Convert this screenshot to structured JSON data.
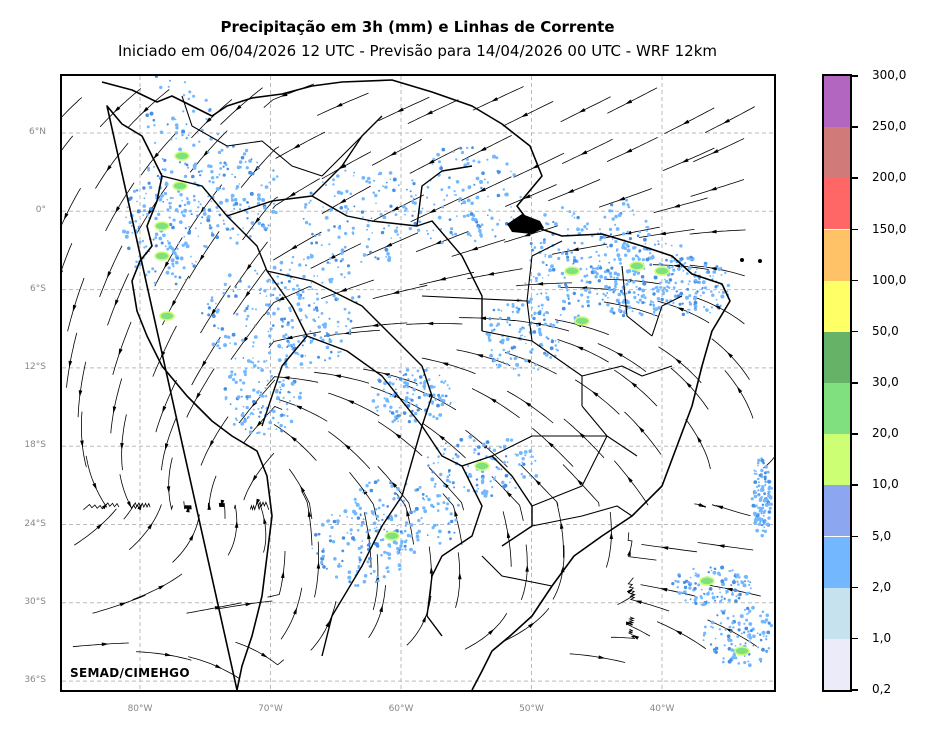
{
  "title": "Precipitação em 3h (mm) e Linhas de Corrente",
  "subtitle": "Iniciado em 06/04/2026 12 UTC - Previsão para 14/04/2026 00 UTC - WRF 12km",
  "credit": "SEMAD/CIMEHGO",
  "lat_labels": [
    "6°N",
    "0°",
    "6°S",
    "12°S",
    "18°S",
    "24°S",
    "30°S",
    "36°S"
  ],
  "lon_labels": [
    "80°W",
    "70°W",
    "60°W",
    "50°W",
    "40°W"
  ],
  "colorbar": {
    "labels": [
      "0,2",
      "1,0",
      "2,0",
      "5,0",
      "10,0",
      "20,0",
      "30,0",
      "50,0",
      "100,0",
      "150,0",
      "200,0",
      "250,0",
      "300,0"
    ],
    "colors": [
      "#ebebfa",
      "#c6e2ee",
      "#73b8ff",
      "#8ca6f0",
      "#ccff73",
      "#80e080",
      "#66b266",
      "#ffff66",
      "#ffc266",
      "#ff6666",
      "#d17a7a",
      "#b366bf"
    ]
  },
  "colors": {
    "light_blue": "#73b8ff",
    "blue": "#4a90e2",
    "green": "#80e080",
    "yellow_green": "#ccff73",
    "dark_green": "#66b266"
  }
}
